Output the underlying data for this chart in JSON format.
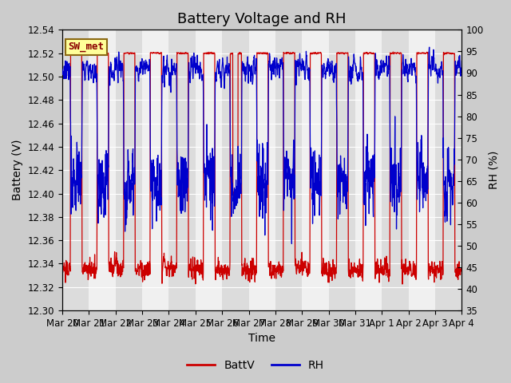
{
  "title": "Battery Voltage and RH",
  "xlabel": "Time",
  "ylabel_left": "Battery (V)",
  "ylabel_right": "RH (%)",
  "ylim_left": [
    12.3,
    12.54
  ],
  "ylim_right": [
    35,
    100
  ],
  "yticks_left": [
    12.3,
    12.32,
    12.34,
    12.36,
    12.38,
    12.4,
    12.42,
    12.44,
    12.46,
    12.48,
    12.5,
    12.52,
    12.54
  ],
  "yticks_right": [
    35,
    40,
    45,
    50,
    55,
    60,
    65,
    70,
    75,
    80,
    85,
    90,
    95,
    100
  ],
  "x_tick_labels": [
    "Mar 20",
    "Mar 21",
    "Mar 22",
    "Mar 23",
    "Mar 24",
    "Mar 25",
    "Mar 26",
    "Mar 27",
    "Mar 28",
    "Mar 29",
    "Mar 30",
    "Mar 31",
    "Apr 1",
    "Apr 2",
    "Apr 3",
    "Apr 4"
  ],
  "annotation_text": "SW_met",
  "annotation_color": "#8B0000",
  "annotation_bg": "#FFFF99",
  "annotation_border": "#8B6914",
  "batt_color": "#CC0000",
  "rh_color": "#0000CC",
  "legend_labels": [
    "BattV",
    "RH"
  ],
  "background_color": "#CCCCCC",
  "inner_bg_color": "#F0F0F0",
  "stripe_color": "#DCDCDC",
  "grid_color": "#FFFFFF",
  "title_fontsize": 13,
  "axis_fontsize": 10,
  "tick_fontsize": 8.5
}
